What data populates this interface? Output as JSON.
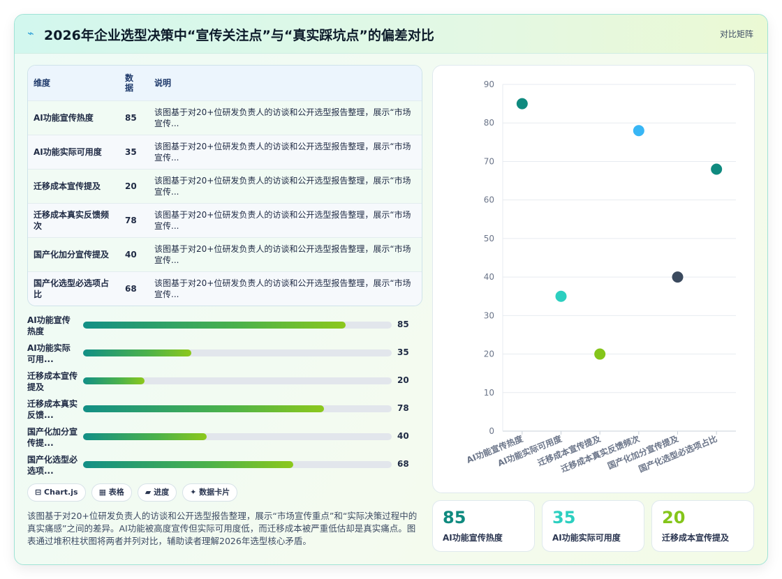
{
  "header": {
    "icon": "lightning-icon",
    "title": "2026年企业选型决策中“宣传关注点”与“真实踩坑点”的偏差对比",
    "badge": "对比矩阵"
  },
  "table": {
    "headers": [
      "维度",
      "数据",
      "说明"
    ],
    "rows": [
      {
        "dim": "AI功能宣传热度",
        "value": "85",
        "desc": "该图基于对20+位研发负责人的访谈和公开选型报告整理，展示“市场宣传..."
      },
      {
        "dim": "AI功能实际可用度",
        "value": "35",
        "desc": "该图基于对20+位研发负责人的访谈和公开选型报告整理，展示“市场宣传..."
      },
      {
        "dim": "迁移成本宣传提及",
        "value": "20",
        "desc": "该图基于对20+位研发负责人的访谈和公开选型报告整理，展示“市场宣传..."
      },
      {
        "dim": "迁移成本真实反馈频次",
        "value": "78",
        "desc": "该图基于对20+位研发负责人的访谈和公开选型报告整理，展示“市场宣传..."
      },
      {
        "dim": "国产化加分宣传提及",
        "value": "40",
        "desc": "该图基于对20+位研发负责人的访谈和公开选型报告整理，展示“市场宣传..."
      },
      {
        "dim": "国产化选型必选项占比",
        "value": "68",
        "desc": "该图基于对20+位研发负责人的访谈和公开选型报告整理，展示“市场宣传..."
      }
    ]
  },
  "bars": [
    {
      "label": "AI功能宣传热度",
      "value": 85
    },
    {
      "label": "AI功能实际可用...",
      "value": 35
    },
    {
      "label": "迁移成本宣传提及",
      "value": 20
    },
    {
      "label": "迁移成本真实反馈...",
      "value": 78
    },
    {
      "label": "国产化加分宣传提...",
      "value": 40
    },
    {
      "label": "国产化选型必选项...",
      "value": 68
    }
  ],
  "bars_max": 100,
  "chips": [
    "⊟ Chart.js",
    "▦ 表格",
    "▰ 进度",
    "✦ 数据卡片"
  ],
  "summary": "该图基于对20+位研发负责人的访谈和公开选型报告整理，展示“市场宣传重点”和“实际决策过程中的真实痛感”之间的差异。AI功能被高度宣传但实际可用度低，而迁移成本被严重低估却是真实痛点。图表通过堆积柱状图将两者并列对比，辅助读者理解2026年选型核心矛盾。",
  "kpis": [
    {
      "value": "85",
      "label": "AI功能宣传热度",
      "color": "#0f8a7f"
    },
    {
      "value": "35",
      "label": "AI功能实际可用度",
      "color": "#2ccfc0"
    },
    {
      "value": "20",
      "label": "迁移成本宣传提及",
      "color": "#84c51a"
    }
  ],
  "chart_data": {
    "type": "scatter",
    "categories": [
      "AI功能宣传热度",
      "AI功能实际可用度",
      "迁移成本宣传提及",
      "迁移成本真实反馈频次",
      "国产化加分宣传提及",
      "国产化选型必选项占比"
    ],
    "values": [
      85,
      35,
      20,
      78,
      40,
      68
    ],
    "colors": [
      "#0f8a7f",
      "#2ccfc0",
      "#84c51a",
      "#38b6f5",
      "#3b4a5e",
      "#0f8a7f"
    ],
    "ylim": [
      0,
      90
    ],
    "yticks": [
      0,
      10,
      20,
      30,
      40,
      50,
      60,
      70,
      80,
      90
    ],
    "grid": true,
    "legend": "none"
  }
}
